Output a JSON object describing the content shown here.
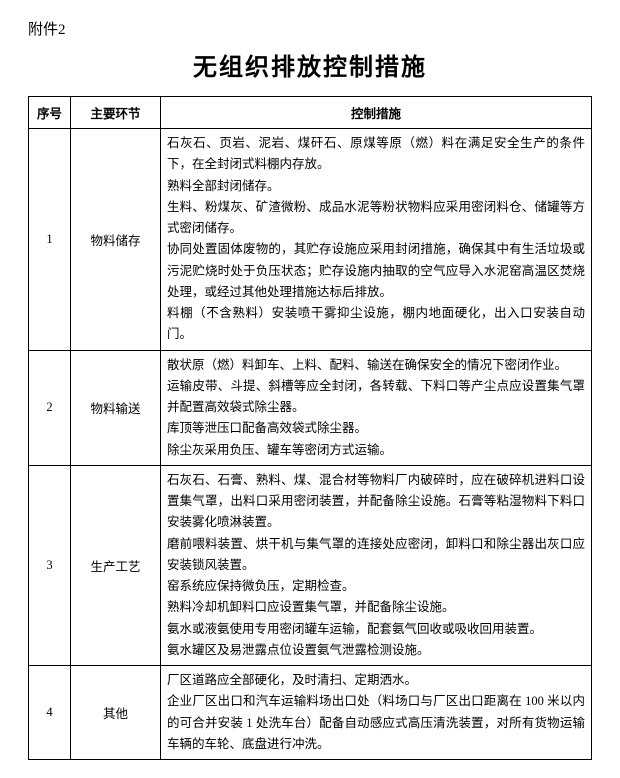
{
  "attachment_label": "附件2",
  "title": "无组织排放控制措施",
  "headers": {
    "seq": "序号",
    "stage": "主要环节",
    "measure": "控制措施"
  },
  "rows": [
    {
      "seq": "1",
      "stage": "物料储存",
      "paras": [
        "石灰石、页岩、泥岩、煤矸石、原煤等原（燃）料在满足安全生产的条件下，在全封闭式料棚内存放。",
        "熟料全部封闭储存。",
        "生料、粉煤灰、矿渣微粉、成品水泥等粉状物料应采用密闭料仓、储罐等方式密闭储存。",
        "协同处置固体废物的，其贮存设施应采用封闭措施，确保其中有生活垃圾或污泥贮烧时处于负压状态；贮存设施内抽取的空气应导入水泥窑高温区焚烧处理，或经过其他处理措施达标后排放。",
        "料棚（不含熟料）安装喷干雾抑尘设施，棚内地面硬化，出入口安装自动门。"
      ]
    },
    {
      "seq": "2",
      "stage": "物料输送",
      "paras": [
        "散状原（燃）料卸车、上料、配料、输送在确保安全的情况下密闭作业。",
        "运输皮带、斗提、斜槽等应全封闭，各转载、下料口等产尘点应设置集气罩并配置高效袋式除尘器。",
        "库顶等泄压口配备高效袋式除尘器。",
        "除尘灰采用负压、罐车等密闭方式运输。"
      ]
    },
    {
      "seq": "3",
      "stage": "生产工艺",
      "paras": [
        "石灰石、石膏、熟料、煤、混合材等物料厂内破碎时，应在破碎机进料口设置集气罩，出料口采用密闭装置，并配备除尘设施。石膏等粘湿物料下料口安装雾化喷淋装置。",
        "磨前喂料装置、烘干机与集气罩的连接处应密闭，卸料口和除尘器出灰口应安装锁风装置。",
        "窑系统应保持微负压，定期检查。",
        "熟料冷却机卸料口应设置集气罩，并配备除尘设施。",
        "氨水或液氨使用专用密闭罐车运输，配套氨气回收或吸收回用装置。",
        "氨水罐区及易泄露点位设置氨气泄露检测设施。"
      ]
    },
    {
      "seq": "4",
      "stage": "其他",
      "paras": [
        "厂区道路应全部硬化，及时清扫、定期洒水。",
        "企业厂区出口和汽车运输料场出口处（料场口与厂区出口距离在 100 米以内的可合并安装 1 处洗车台）配备自动感应式高压清洗装置，对所有货物运输车辆的车轮、底盘进行冲洗。"
      ]
    }
  ]
}
